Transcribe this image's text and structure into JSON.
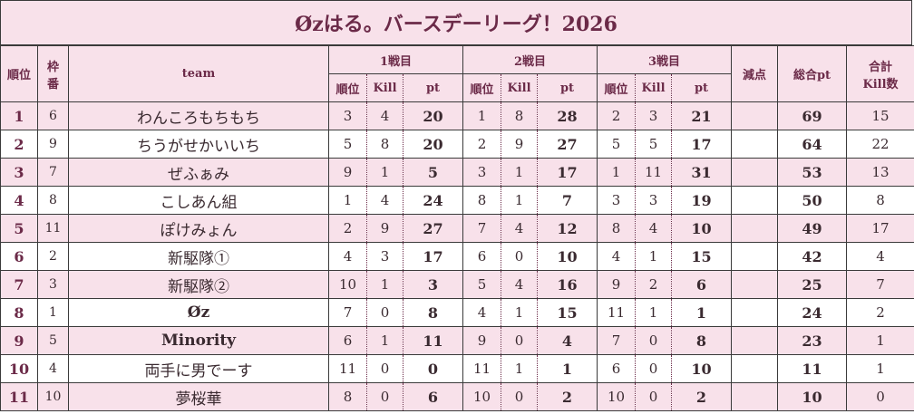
{
  "title": "Øzはる。バースデーリーグ！2026",
  "headers": {
    "rank": "順位",
    "frame_line1": "枠",
    "frame_line2": "番",
    "team": "team",
    "match1": "1戦目",
    "match2": "2戦目",
    "match3": "3戦目",
    "penalty": "減点",
    "total": "総合pt",
    "kill_total_line1": "合計",
    "kill_total_line2": "Kill数",
    "sub_rank": "順位",
    "sub_kill": "Kill",
    "sub_pt": "pt"
  },
  "rows": [
    {
      "rank": "1",
      "frame": "6",
      "team": "わんころもちもち",
      "r1": "3",
      "k1": "4",
      "p1": "20",
      "r2": "1",
      "k2": "8",
      "p2": "28",
      "r3": "2",
      "k3": "3",
      "p3": "21",
      "penalty": "",
      "total": "69",
      "kills": "15"
    },
    {
      "rank": "2",
      "frame": "9",
      "team": "ちうがせかいいち",
      "r1": "5",
      "k1": "8",
      "p1": "20",
      "r2": "2",
      "k2": "9",
      "p2": "27",
      "r3": "5",
      "k3": "5",
      "p3": "17",
      "penalty": "",
      "total": "64",
      "kills": "22"
    },
    {
      "rank": "3",
      "frame": "7",
      "team": "ぜふぁみ",
      "r1": "9",
      "k1": "1",
      "p1": "5",
      "r2": "3",
      "k2": "1",
      "p2": "17",
      "r3": "1",
      "k3": "11",
      "p3": "31",
      "penalty": "",
      "total": "53",
      "kills": "13"
    },
    {
      "rank": "4",
      "frame": "8",
      "team": "こしあん組",
      "r1": "1",
      "k1": "4",
      "p1": "24",
      "r2": "8",
      "k2": "1",
      "p2": "7",
      "r3": "3",
      "k3": "3",
      "p3": "19",
      "penalty": "",
      "total": "50",
      "kills": "8"
    },
    {
      "rank": "5",
      "frame": "11",
      "team": "ぽけみょん",
      "r1": "2",
      "k1": "9",
      "p1": "27",
      "r2": "7",
      "k2": "4",
      "p2": "12",
      "r3": "8",
      "k3": "4",
      "p3": "10",
      "penalty": "",
      "total": "49",
      "kills": "17"
    },
    {
      "rank": "6",
      "frame": "2",
      "team": "新駆隊①",
      "r1": "4",
      "k1": "3",
      "p1": "17",
      "r2": "6",
      "k2": "0",
      "p2": "10",
      "r3": "4",
      "k3": "1",
      "p3": "15",
      "penalty": "",
      "total": "42",
      "kills": "4"
    },
    {
      "rank": "7",
      "frame": "3",
      "team": "新駆隊②",
      "r1": "10",
      "k1": "1",
      "p1": "3",
      "r2": "5",
      "k2": "4",
      "p2": "16",
      "r3": "9",
      "k3": "2",
      "p3": "6",
      "penalty": "",
      "total": "25",
      "kills": "7"
    },
    {
      "rank": "8",
      "frame": "1",
      "team": "Øz",
      "r1": "7",
      "k1": "0",
      "p1": "8",
      "r2": "4",
      "k2": "1",
      "p2": "15",
      "r3": "11",
      "k3": "1",
      "p3": "1",
      "penalty": "",
      "total": "24",
      "kills": "2"
    },
    {
      "rank": "9",
      "frame": "5",
      "team": "Minority",
      "r1": "6",
      "k1": "1",
      "p1": "11",
      "r2": "9",
      "k2": "0",
      "p2": "4",
      "r3": "7",
      "k3": "0",
      "p3": "8",
      "penalty": "",
      "total": "23",
      "kills": "1"
    },
    {
      "rank": "10",
      "frame": "4",
      "team": "両手に男でーす",
      "r1": "11",
      "k1": "0",
      "p1": "0",
      "r2": "11",
      "k2": "1",
      "p2": "1",
      "r3": "6",
      "k3": "0",
      "p3": "10",
      "penalty": "",
      "total": "11",
      "kills": "1"
    },
    {
      "rank": "11",
      "frame": "10",
      "team": "夢桜華",
      "r1": "8",
      "k1": "0",
      "p1": "6",
      "r2": "10",
      "k2": "0",
      "p2": "2",
      "r3": "10",
      "k3": "0",
      "p3": "2",
      "penalty": "",
      "total": "10",
      "kills": "0"
    }
  ],
  "colors": {
    "header_bg": "#f8e1ea",
    "stripe_bg": "#f8e1ea",
    "accent_text": "#6b2a48",
    "border": "#3a3a3a"
  }
}
